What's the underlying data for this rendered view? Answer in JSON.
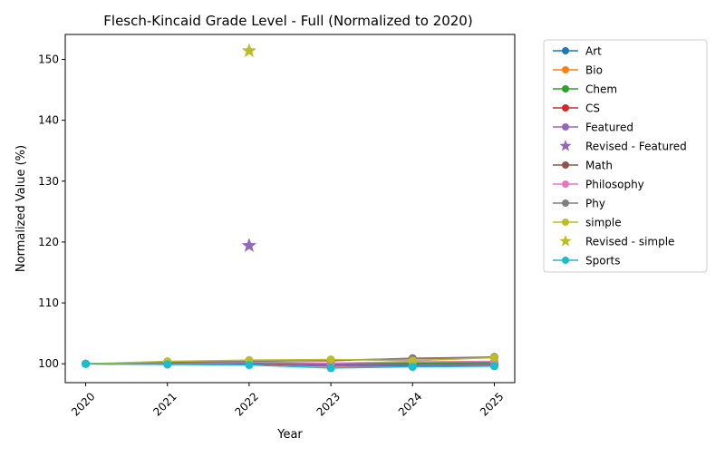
{
  "chart_data": {
    "type": "line",
    "title": "Flesch-Kincaid Grade Level - Full (Normalized to 2020)",
    "xlabel": "Year",
    "ylabel": "Normalized Value (%)",
    "x": [
      "2020",
      "2021",
      "2022",
      "2023",
      "2024",
      "2025"
    ],
    "xlim": [
      2019.75,
      2025.25
    ],
    "ylim": [
      96.9,
      154.1
    ],
    "yticks": [
      100,
      110,
      120,
      130,
      140,
      150
    ],
    "x_tick_rotation": 45,
    "grid": false,
    "legend_position": "outside-right",
    "series": [
      {
        "name": "Art",
        "color": "#1f77b4",
        "marker": "circle",
        "values": [
          100,
          100.0,
          100.1,
          99.9,
          100.0,
          100.1
        ]
      },
      {
        "name": "Bio",
        "color": "#ff7f0e",
        "marker": "circle",
        "values": [
          100,
          100.2,
          100.3,
          100.0,
          100.2,
          100.3
        ]
      },
      {
        "name": "Chem",
        "color": "#2ca02c",
        "marker": "circle",
        "values": [
          100,
          100.1,
          100.2,
          100.0,
          100.1,
          100.2
        ]
      },
      {
        "name": "CS",
        "color": "#d62728",
        "marker": "circle",
        "values": [
          100,
          99.9,
          100.0,
          99.6,
          99.7,
          99.8
        ]
      },
      {
        "name": "Featured",
        "color": "#9467bd",
        "marker": "circle",
        "values": [
          100,
          99.9,
          100.1,
          99.7,
          99.8,
          99.9
        ]
      },
      {
        "name": "Revised - Featured",
        "color": "#9467bd",
        "marker": "star",
        "points": [
          {
            "x": "2022",
            "y": 119.4
          }
        ]
      },
      {
        "name": "Math",
        "color": "#8c564b",
        "marker": "circle",
        "values": [
          100,
          100.2,
          100.5,
          100.5,
          100.9,
          101.1
        ]
      },
      {
        "name": "Philosophy",
        "color": "#e377c2",
        "marker": "circle",
        "values": [
          100,
          100.1,
          100.3,
          100.1,
          100.3,
          100.4
        ]
      },
      {
        "name": "Phy",
        "color": "#7f7f7f",
        "marker": "circle",
        "values": [
          100,
          100.1,
          100.4,
          100.6,
          100.8,
          101.0
        ]
      },
      {
        "name": "simple",
        "color": "#bcbd22",
        "marker": "circle",
        "values": [
          100,
          100.4,
          100.6,
          100.7,
          100.5,
          101.0
        ]
      },
      {
        "name": "Revised - simple",
        "color": "#bcbd22",
        "marker": "star",
        "points": [
          {
            "x": "2022",
            "y": 151.4
          }
        ]
      },
      {
        "name": "Sports",
        "color": "#17becf",
        "marker": "circle",
        "values": [
          100,
          99.9,
          99.8,
          99.3,
          99.5,
          99.6
        ]
      }
    ]
  }
}
